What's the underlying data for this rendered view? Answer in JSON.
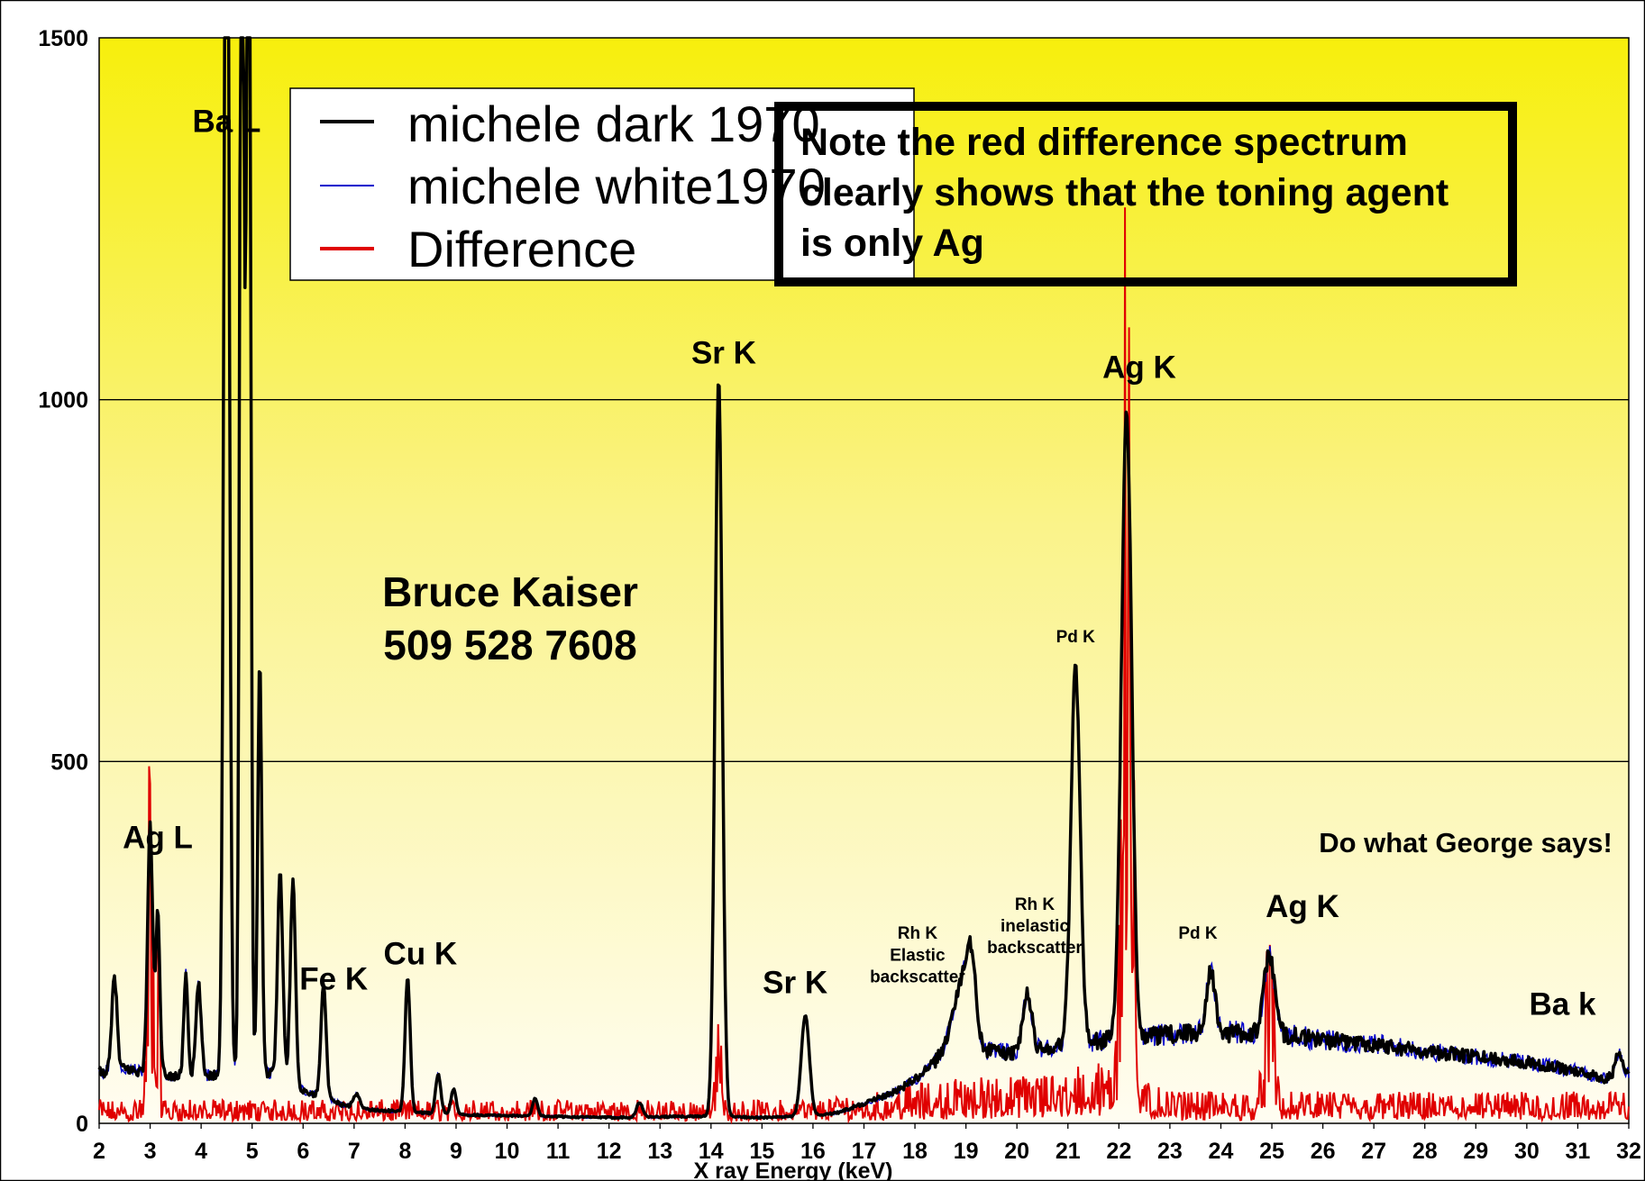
{
  "chart_data": {
    "type": "line",
    "xlabel": "X ray Energy (keV)",
    "ylabel": "",
    "xlim": [
      2,
      32
    ],
    "ylim": [
      0,
      1500
    ],
    "x_ticks": [
      "2",
      "3",
      "4",
      "5",
      "6",
      "7",
      "8",
      "9",
      "10",
      "11",
      "12",
      "13",
      "14",
      "15",
      "16",
      "17",
      "18",
      "19",
      "20",
      "21",
      "22",
      "23",
      "24",
      "25",
      "26",
      "27",
      "28",
      "29",
      "30",
      "31",
      "32"
    ],
    "y_ticks": [
      "0",
      "500",
      "1000",
      "1500"
    ],
    "grid": "horizontal",
    "legend_position": "top-left",
    "background": "yellow-to-white vertical gradient",
    "series": [
      {
        "name": "michele dark 1970",
        "color": "#000000",
        "baseline": [
          [
            2.0,
            70
          ],
          [
            2.5,
            75
          ],
          [
            3.5,
            65
          ],
          [
            5.5,
            70
          ],
          [
            6.0,
            45
          ],
          [
            7.0,
            20
          ],
          [
            9.0,
            12
          ],
          [
            12.0,
            8
          ],
          [
            14.0,
            10
          ],
          [
            15.0,
            8
          ],
          [
            16.0,
            10
          ],
          [
            16.5,
            15
          ],
          [
            17.5,
            40
          ],
          [
            18.0,
            60
          ],
          [
            18.5,
            90
          ],
          [
            19.5,
            100
          ],
          [
            20.0,
            95
          ],
          [
            21.0,
            110
          ],
          [
            22.5,
            120
          ],
          [
            23.5,
            125
          ],
          [
            25.0,
            125
          ],
          [
            26.0,
            115
          ],
          [
            27.0,
            110
          ],
          [
            28.0,
            100
          ],
          [
            29.0,
            92
          ],
          [
            30.0,
            85
          ],
          [
            31.0,
            72
          ],
          [
            31.5,
            62
          ],
          [
            32.0,
            70
          ]
        ],
        "peaks": [
          {
            "x": 2.3,
            "y": 130,
            "w": 0.05
          },
          {
            "x": 3.0,
            "y": 340,
            "w": 0.05
          },
          {
            "x": 3.15,
            "y": 220,
            "w": 0.04
          },
          {
            "x": 3.7,
            "y": 140,
            "w": 0.04
          },
          {
            "x": 3.95,
            "y": 125,
            "w": 0.05
          },
          {
            "x": 4.5,
            "y": 2000,
            "w": 0.05
          },
          {
            "x": 4.8,
            "y": 2000,
            "w": 0.04
          },
          {
            "x": 4.93,
            "y": 2000,
            "w": 0.04
          },
          {
            "x": 5.15,
            "y": 570,
            "w": 0.04
          },
          {
            "x": 5.55,
            "y": 280,
            "w": 0.05
          },
          {
            "x": 5.8,
            "y": 280,
            "w": 0.05
          },
          {
            "x": 6.4,
            "y": 160,
            "w": 0.05
          },
          {
            "x": 7.05,
            "y": 20,
            "w": 0.07
          },
          {
            "x": 8.05,
            "y": 185,
            "w": 0.05
          },
          {
            "x": 8.65,
            "y": 55,
            "w": 0.05
          },
          {
            "x": 8.95,
            "y": 35,
            "w": 0.05
          },
          {
            "x": 10.55,
            "y": 25,
            "w": 0.05
          },
          {
            "x": 12.6,
            "y": 20,
            "w": 0.06
          },
          {
            "x": 14.15,
            "y": 1020,
            "w": 0.07
          },
          {
            "x": 15.85,
            "y": 140,
            "w": 0.08
          },
          {
            "x": 18.9,
            "y": 90,
            "w": 0.18
          },
          {
            "x": 19.1,
            "y": 100,
            "w": 0.1
          },
          {
            "x": 20.2,
            "y": 80,
            "w": 0.09
          },
          {
            "x": 21.15,
            "y": 520,
            "w": 0.09
          },
          {
            "x": 22.15,
            "y": 860,
            "w": 0.1
          },
          {
            "x": 23.8,
            "y": 90,
            "w": 0.08
          },
          {
            "x": 24.95,
            "y": 110,
            "w": 0.1
          },
          {
            "x": 31.8,
            "y": 30,
            "w": 0.06
          }
        ]
      },
      {
        "name": "michele white1970",
        "color": "#0000cc"
      },
      {
        "name": "Difference",
        "color": "#e00000",
        "baseline": [
          [
            2.0,
            15
          ],
          [
            16.0,
            15
          ],
          [
            17.0,
            20
          ],
          [
            18.0,
            25
          ],
          [
            19.0,
            30
          ],
          [
            20.0,
            30
          ],
          [
            21.0,
            35
          ],
          [
            21.5,
            40
          ],
          [
            22.6,
            25
          ],
          [
            23.0,
            20
          ],
          [
            32.0,
            20
          ]
        ],
        "peaks": [
          {
            "x": 3.0,
            "y": 250,
            "w": 0.05
          },
          {
            "x": 3.15,
            "y": 110,
            "w": 0.04
          },
          {
            "x": 14.15,
            "y": 60,
            "w": 0.05
          },
          {
            "x": 22.15,
            "y": 850,
            "w": 0.09
          },
          {
            "x": 24.95,
            "y": 120,
            "w": 0.09
          }
        ]
      }
    ],
    "annotations": [
      {
        "text": "Ba L",
        "x": 4.5,
        "y": 1370
      },
      {
        "text": "Ag L",
        "x": 3.15,
        "y": 380
      },
      {
        "text": "Fe K",
        "x": 6.6,
        "y": 185
      },
      {
        "text": "Cu K",
        "x": 8.3,
        "y": 220
      },
      {
        "text": "Sr K",
        "x": 14.25,
        "y": 1050
      },
      {
        "text": "Sr K",
        "x": 15.65,
        "y": 180
      },
      {
        "text": "Ag K",
        "x": 22.4,
        "y": 1030
      },
      {
        "text": "Pd K",
        "x": 21.15,
        "y": 665
      },
      {
        "text": "Rh K",
        "x": 18.05,
        "y": 255
      },
      {
        "text": "Elastic",
        "x": 18.05,
        "y": 225
      },
      {
        "text": "backscatter",
        "x": 18.05,
        "y": 195
      },
      {
        "text": "Rh K",
        "x": 20.35,
        "y": 295
      },
      {
        "text": "inelastic",
        "x": 20.35,
        "y": 265
      },
      {
        "text": "backscatter",
        "x": 20.35,
        "y": 235
      },
      {
        "text": "Pd K",
        "x": 23.55,
        "y": 255
      },
      {
        "text": "Ag K",
        "x": 25.6,
        "y": 285
      },
      {
        "text": "Ba k",
        "x": 30.7,
        "y": 150
      },
      {
        "text": "Do what George says!",
        "x": 28.8,
        "y": 375,
        "color": "#ff0000"
      }
    ]
  },
  "overlay": {
    "author_name": "Bruce Kaiser",
    "author_phone": "509 528 7608",
    "note_lines": [
      "Note the red difference spectrum",
      "clearly shows that the toning agent",
      "is only Ag"
    ],
    "note_color": "#ff0000"
  }
}
